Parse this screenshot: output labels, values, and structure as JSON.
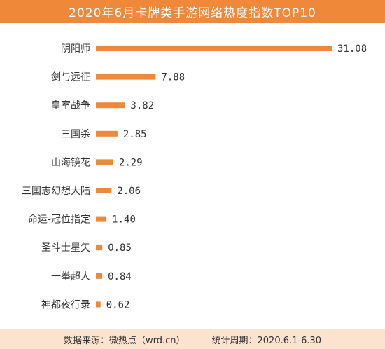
{
  "header": {
    "title": "2020年6月卡牌类手游网络热度指数TOP10"
  },
  "colors": {
    "bar": "#F0883A",
    "title_bg": "#F0883A",
    "footer_bg": "#FBE3CF",
    "label": "#333333"
  },
  "chart_data": {
    "type": "bar",
    "orientation": "horizontal",
    "categories": [
      "阴阳师",
      "剑与远征",
      "皇室战争",
      "三国杀",
      "山海镜花",
      "三国志幻想大陆",
      "命运-冠位指定",
      "圣斗士星矢",
      "一拳超人",
      "神都夜行录"
    ],
    "values": [
      31.08,
      7.88,
      3.82,
      2.85,
      2.29,
      2.06,
      1.4,
      0.85,
      0.84,
      0.62
    ],
    "value_labels": [
      "31.08",
      "7.88",
      "3.82",
      "2.85",
      "2.29",
      "2.06",
      "1.40",
      "0.85",
      "0.84",
      "0.62"
    ],
    "title": "2020年6月卡牌类手游网络热度指数TOP10",
    "xlim": [
      0,
      31.08
    ],
    "grid": false,
    "legend": "none"
  },
  "footer": {
    "source": "数据来源：微热点（wrd.cn）",
    "period": "统计周期：2020.6.1-6.30"
  }
}
